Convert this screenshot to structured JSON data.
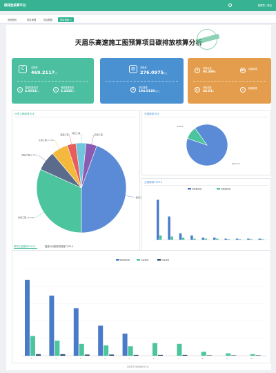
{
  "app": {
    "title": "碳排放核算平台",
    "user": "管理员 | 退出"
  },
  "tabs": [
    {
      "label": "系统首页"
    },
    {
      "label": "项目管理"
    },
    {
      "label": "项目看板"
    },
    {
      "label": "项目看板 ×"
    }
  ],
  "page_title": "天眉乐高速施工图预算项目碳排放核算分析",
  "stamp_text": "已审核",
  "cards": {
    "total": {
      "label": "总碳排",
      "value": "469.2117",
      "unit": "万t"
    },
    "direct": {
      "label": "直接碳排放量",
      "value": "4.9654",
      "unit": "万t"
    },
    "indirect": {
      "label": "间接碳排放量",
      "value": "2.4320",
      "unit": "万t"
    },
    "invest": {
      "label": "总投资",
      "value": "276.0975",
      "unit": "亿元"
    },
    "per_yuan": {
      "label": "单位碳排",
      "value": "194.0128",
      "unit": "t/亿元"
    },
    "orange": [
      {
        "label": "机械台班",
        "value": "94.496",
        "unit": "%"
      },
      {
        "label": "运输碳排",
        "value": ""
      },
      {
        "label": "材料碳排",
        "value": "48.01",
        "unit": "%"
      },
      {
        "label": "能源碳排",
        "value": ""
      }
    ]
  },
  "panels": {
    "pie_main": {
      "title": "分项工程碳排占比"
    },
    "pie_small": {
      "title": "分类碳排占比"
    },
    "bar_top10": {
      "title": "分类碳排TOP10"
    },
    "bottom_tabs": [
      "单项工程碳排TOP10",
      "直接&间接碳排放量TOP10"
    ]
  },
  "footer": "版权所有 碳排放核算平台",
  "chart_data": [
    {
      "type": "pie",
      "title": "分项工程碳排占比",
      "slices": [
        {
          "name": "路基工程",
          "value": 42.35,
          "color": "#5b8bd6"
        },
        {
          "name": "桥梁工程",
          "value": 30.26,
          "color": "#4cc59f"
        },
        {
          "name": "隧道工程",
          "value": 6.75,
          "color": "#5a6b8c"
        },
        {
          "name": "交通工程",
          "value": 5.73,
          "color": "#f4b83d"
        },
        {
          "name": "路面工程",
          "value": 3.0,
          "color": "#e55d5d"
        },
        {
          "name": "绿化工程",
          "value": 3.5,
          "color": "#70c6de"
        },
        {
          "name": "其他工程",
          "value": 3.7,
          "color": "#8a5bb0"
        }
      ],
      "labels": [
        "路基工程 42.35%",
        "桥梁工程 30.26%",
        "隧道工程 6.75%",
        "交通工程 5.73%",
        "路面工程",
        "绿化工程",
        "其他工程"
      ]
    },
    {
      "type": "pie",
      "title": "分类碳排占比",
      "slices": [
        {
          "name": "材料",
          "value": 90.11,
          "color": "#5b8bd6"
        },
        {
          "name": "机械",
          "value": 9.89,
          "color": "#4cc59f"
        }
      ],
      "labels": [
        "9.89%",
        "90.11%"
      ]
    },
    {
      "type": "bar",
      "title": "分类碳排TOP10",
      "legend": [
        "材料碳排放",
        "机械碳排放"
      ],
      "series": [
        {
          "name": "材料碳排放",
          "color": "#4a7bc8",
          "values": [
            38,
            22,
            6,
            4,
            2,
            2,
            1,
            1,
            1,
            1
          ]
        },
        {
          "name": "机械碳排放",
          "color": "#4cc59f",
          "values": [
            4,
            3,
            2,
            1,
            1,
            1,
            0.5,
            0.5,
            0.5,
            0.5
          ]
        }
      ]
    },
    {
      "type": "bar",
      "title": "单项工程碳排TOP10",
      "legend": [
        "碳排放总量",
        "直接碳排",
        "间接碳排"
      ],
      "categories": [
        "1",
        "2",
        "3",
        "4",
        "5",
        "6",
        "7",
        "8",
        "9",
        "10"
      ],
      "series": [
        {
          "name": "碳排放总量",
          "color": "#4a7bc8",
          "values": [
            96,
            76,
            60,
            38,
            28,
            0,
            0,
            0,
            0,
            0
          ]
        },
        {
          "name": "直接碳排",
          "color": "#4cc59f",
          "values": [
            25,
            19,
            15,
            13,
            12,
            16,
            15,
            5,
            3,
            2
          ]
        },
        {
          "name": "间接碳排",
          "color": "#2f4f6f",
          "values": [
            2,
            2,
            1.5,
            1.5,
            1,
            1,
            1,
            0.5,
            0.5,
            0.5
          ]
        }
      ],
      "ylim": [
        0,
        110
      ]
    }
  ]
}
